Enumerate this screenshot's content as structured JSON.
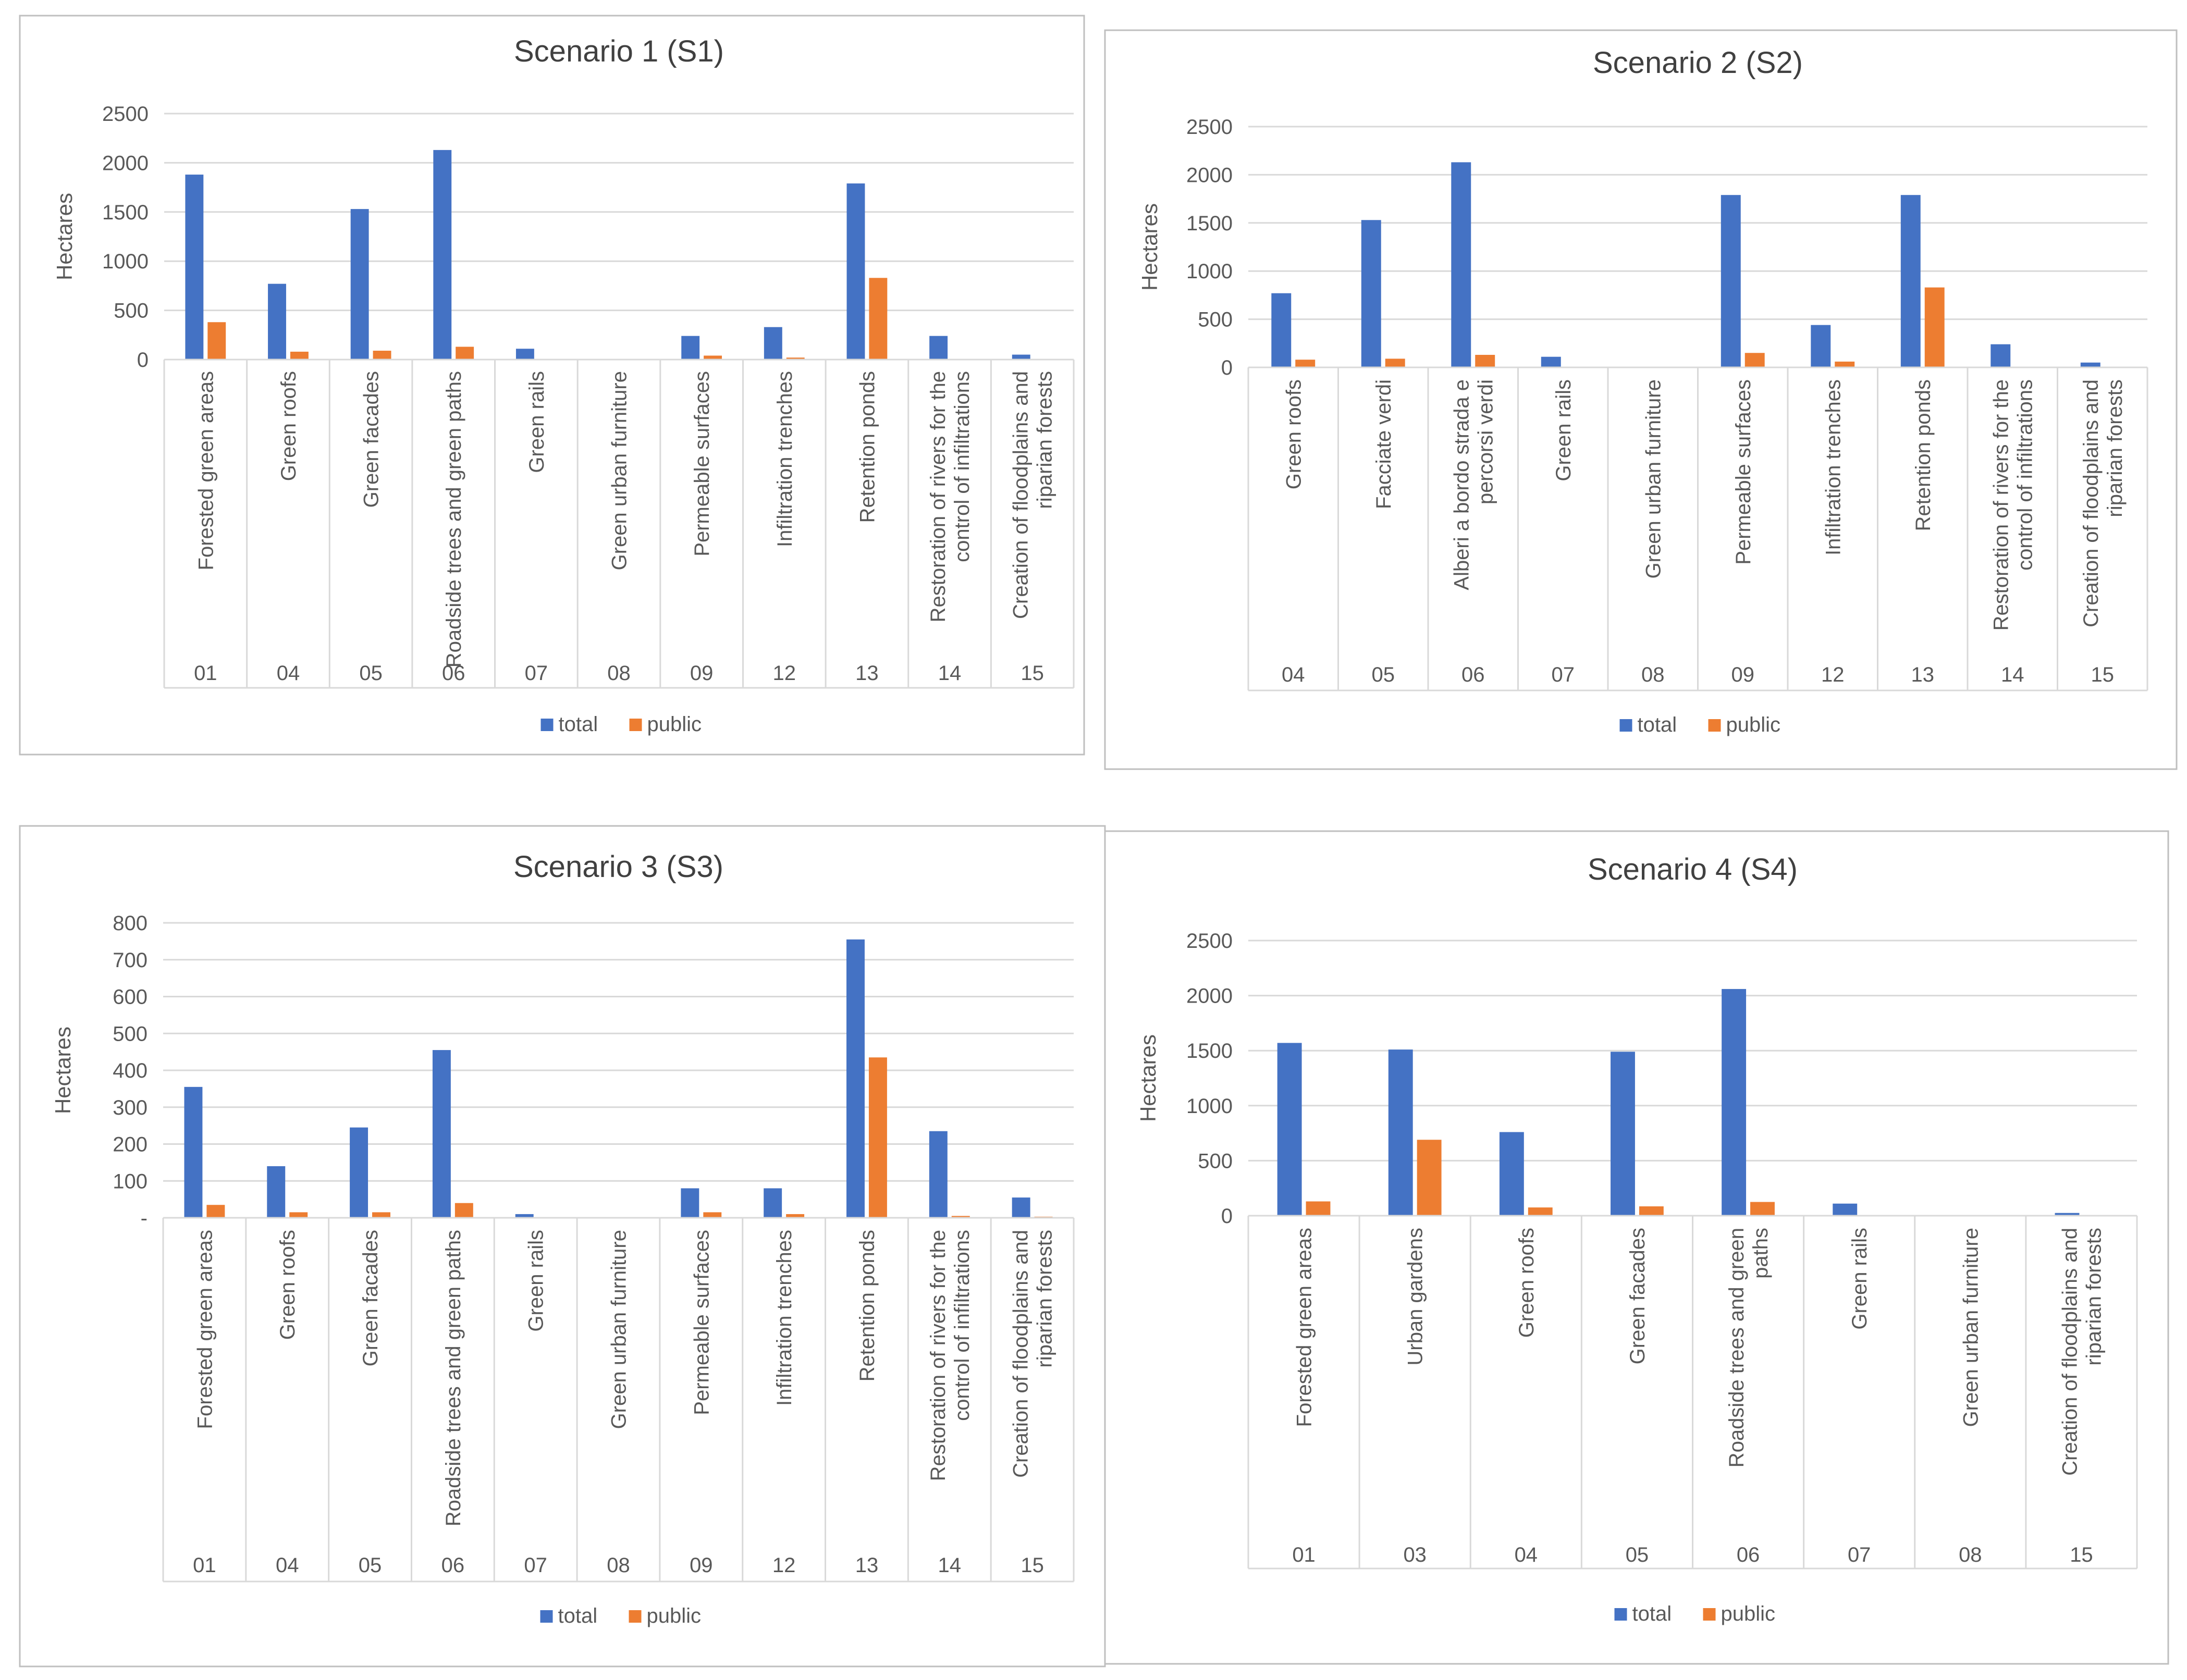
{
  "legend": {
    "total_label": "total",
    "public_label": "public"
  },
  "colors": {
    "total": "#4472C4",
    "public": "#ED7D31",
    "grid": "#D9D9D9",
    "text": "#595959",
    "title": "#404040",
    "border": "#BFBFBF"
  },
  "chart_data": [
    {
      "type": "bar",
      "title": "Scenario 1 (S1)",
      "ylabel": "Hectares",
      "ylim": [
        0,
        2500
      ],
      "yticks": [
        0,
        500,
        1000,
        1500,
        2000,
        2500
      ],
      "ytick_labels": [
        "0",
        "500",
        "1000",
        "1500",
        "2000",
        "2500"
      ],
      "categories": [
        "Forested green areas",
        "Green roofs",
        "Green facades",
        "Roadside trees and green paths",
        "Green rails",
        "Green urban furniture",
        "Permeable surfaces",
        "Infiltration trenches",
        "Retention ponds",
        "Restoration of rivers for the control of infiltrations",
        "Creation of floodplains and riparian forests"
      ],
      "codes": [
        "01",
        "04",
        "05",
        "06",
        "07",
        "08",
        "09",
        "12",
        "13",
        "14",
        "15"
      ],
      "series": [
        {
          "name": "total",
          "values": [
            1880,
            770,
            1530,
            2130,
            110,
            0,
            240,
            330,
            1790,
            240,
            50
          ]
        },
        {
          "name": "public",
          "values": [
            380,
            80,
            90,
            130,
            5,
            0,
            40,
            20,
            830,
            5,
            5
          ]
        }
      ]
    },
    {
      "type": "bar",
      "title": "Scenario 2 (S2)",
      "ylabel": "Hectares",
      "ylim": [
        0,
        2500
      ],
      "yticks": [
        0,
        500,
        1000,
        1500,
        2000,
        2500
      ],
      "ytick_labels": [
        "0",
        "500",
        "1000",
        "1500",
        "2000",
        "2500"
      ],
      "categories": [
        "Green roofs",
        "Facciate verdi",
        "Alberi a bordo strada e percorsi verdi",
        "Green rails",
        "Green urban furniture",
        "Permeable surfaces",
        "Infiltration trenches",
        "Retention ponds",
        "Restoration of rivers for the control of infiltrations",
        "Creation of floodplains and riparian forests"
      ],
      "codes": [
        "04",
        "05",
        "06",
        "07",
        "08",
        "09",
        "12",
        "13",
        "14",
        "15"
      ],
      "series": [
        {
          "name": "total",
          "values": [
            770,
            1530,
            2130,
            110,
            0,
            1790,
            440,
            1790,
            240,
            50
          ]
        },
        {
          "name": "public",
          "values": [
            80,
            90,
            130,
            5,
            0,
            150,
            60,
            830,
            5,
            5
          ]
        }
      ]
    },
    {
      "type": "bar",
      "title": "Scenario 3 (S3)",
      "ylabel": "Hectares",
      "ylim": [
        0,
        800
      ],
      "yticks": [
        0,
        100,
        200,
        300,
        400,
        500,
        600,
        700,
        800
      ],
      "ytick_labels": [
        "-",
        "100",
        "200",
        "300",
        "400",
        "500",
        "600",
        "700",
        "800"
      ],
      "categories": [
        "Forested green areas",
        "Green roofs",
        "Green facades",
        "Roadside trees and green paths",
        "Green rails",
        "Green urban furniture",
        "Permeable surfaces",
        "Infiltration trenches",
        "Retention ponds",
        "Restoration of rivers for the control of infiltrations",
        "Creation of floodplains and riparian forests"
      ],
      "codes": [
        "01",
        "04",
        "05",
        "06",
        "07",
        "08",
        "09",
        "12",
        "13",
        "14",
        "15"
      ],
      "series": [
        {
          "name": "total",
          "values": [
            355,
            140,
            245,
            455,
            10,
            0,
            80,
            80,
            755,
            235,
            55
          ]
        },
        {
          "name": "public",
          "values": [
            35,
            15,
            15,
            40,
            2,
            0,
            15,
            10,
            435,
            5,
            3
          ]
        }
      ]
    },
    {
      "type": "bar",
      "title": "Scenario 4 (S4)",
      "ylabel": "Hectares",
      "ylim": [
        0,
        2500
      ],
      "yticks": [
        0,
        500,
        1000,
        1500,
        2000,
        2500
      ],
      "ytick_labels": [
        "0",
        "500",
        "1000",
        "1500",
        "2000",
        "2500"
      ],
      "categories": [
        "Forested green areas",
        "Urban gardens",
        "Green roofs",
        "Green facades",
        "Roadside trees and green paths",
        "Green rails",
        "Green urban furniture",
        "Creation of floodplains and riparian forests"
      ],
      "codes": [
        "01",
        "03",
        "04",
        "05",
        "06",
        "07",
        "08",
        "15"
      ],
      "series": [
        {
          "name": "total",
          "values": [
            1570,
            1510,
            760,
            1490,
            2060,
            110,
            0,
            25
          ]
        },
        {
          "name": "public",
          "values": [
            130,
            690,
            75,
            85,
            125,
            0,
            0,
            0
          ]
        }
      ]
    }
  ]
}
